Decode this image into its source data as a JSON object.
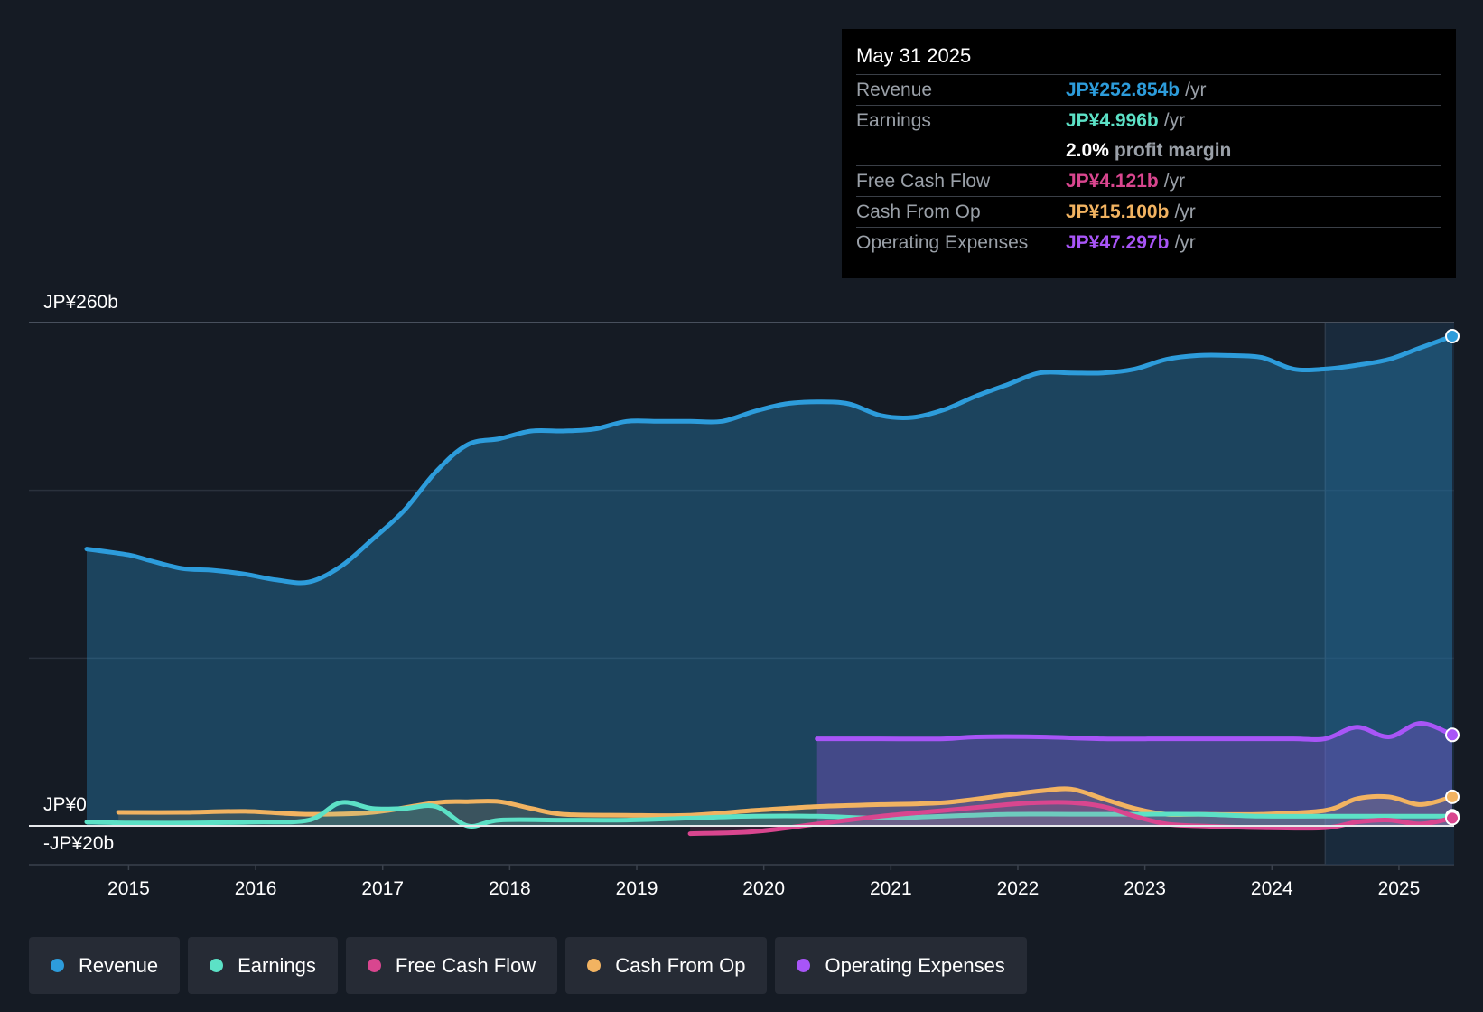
{
  "tooltip": {
    "date": "May 31 2025",
    "rows": [
      {
        "label": "Revenue",
        "value": "JP¥252.854b",
        "unit": "/yr",
        "color": "#2d9cdb"
      },
      {
        "label": "Earnings",
        "value": "JP¥4.996b",
        "unit": "/yr",
        "color": "#5ce1c6"
      },
      {
        "label": "",
        "value": "2.0%",
        "unit": "profit margin"
      },
      {
        "label": "Free Cash Flow",
        "value": "JP¥4.121b",
        "unit": "/yr",
        "color": "#d9468f"
      },
      {
        "label": "Cash From Op",
        "value": "JP¥15.100b",
        "unit": "/yr",
        "color": "#f2b361"
      },
      {
        "label": "Operating Expenses",
        "value": "JP¥47.297b",
        "unit": "/yr",
        "color": "#a855f7"
      }
    ]
  },
  "legend": [
    {
      "label": "Revenue",
      "color": "#2d9cdb"
    },
    {
      "label": "Earnings",
      "color": "#5ce1c6"
    },
    {
      "label": "Free Cash Flow",
      "color": "#d9468f"
    },
    {
      "label": "Cash From Op",
      "color": "#f2b361"
    },
    {
      "label": "Operating Expenses",
      "color": "#a855f7"
    }
  ],
  "chart_data": {
    "type": "line",
    "title": "",
    "y_axis_labels": [
      "JP¥260b",
      "JP¥0",
      "-JP¥20b"
    ],
    "ylim": [
      -20,
      260
    ],
    "xlim": [
      2014.67,
      2025.42
    ],
    "x_ticks": [
      "2015",
      "2016",
      "2017",
      "2018",
      "2019",
      "2020",
      "2021",
      "2022",
      "2023",
      "2024",
      "2025"
    ],
    "forecast_region_start": 2024.42,
    "series": [
      {
        "name": "Revenue",
        "color": "#2d9cdb",
        "area": true,
        "x": [
          2014.67,
          2015.0,
          2015.17,
          2015.42,
          2015.67,
          2015.92,
          2016.17,
          2016.42,
          2016.67,
          2016.92,
          2017.17,
          2017.42,
          2017.67,
          2017.92,
          2018.17,
          2018.42,
          2018.67,
          2018.92,
          2019.17,
          2019.42,
          2019.67,
          2019.92,
          2020.17,
          2020.42,
          2020.67,
          2020.92,
          2021.17,
          2021.42,
          2021.67,
          2021.92,
          2022.17,
          2022.42,
          2022.67,
          2022.92,
          2023.17,
          2023.42,
          2023.67,
          2023.92,
          2024.17,
          2024.42,
          2024.67,
          2024.92,
          2025.17,
          2025.42
        ],
        "values": [
          143,
          140,
          137,
          133,
          132,
          130,
          127,
          126,
          134,
          148,
          163,
          183,
          197,
          200,
          204,
          204,
          205,
          209,
          209,
          209,
          209,
          214,
          218,
          219,
          218,
          212,
          211,
          215,
          222,
          228,
          234,
          234,
          234,
          236,
          241,
          243,
          243,
          242,
          236,
          236,
          238,
          241,
          247,
          253
        ]
      },
      {
        "name": "Earnings",
        "color": "#5ce1c6",
        "area": true,
        "x": [
          2014.67,
          2015.0,
          2015.5,
          2016.0,
          2016.42,
          2016.67,
          2016.92,
          2017.17,
          2017.42,
          2017.67,
          2017.92,
          2018.42,
          2018.92,
          2019.42,
          2019.92,
          2020.42,
          2020.92,
          2021.42,
          2021.92,
          2022.42,
          2022.92,
          2023.42,
          2023.92,
          2024.42,
          2024.92,
          2025.42
        ],
        "values": [
          2,
          1.5,
          1.5,
          2,
          3,
          12,
          9,
          9,
          10,
          0,
          3,
          3,
          3,
          4,
          5,
          5,
          4,
          5,
          6,
          6,
          6,
          6,
          5,
          5,
          5,
          5
        ]
      },
      {
        "name": "Free Cash Flow",
        "color": "#d9468f",
        "area": true,
        "x": [
          2019.42,
          2019.92,
          2020.42,
          2020.92,
          2021.42,
          2021.92,
          2022.17,
          2022.42,
          2022.67,
          2022.92,
          2023.17,
          2023.42,
          2023.92,
          2024.42,
          2024.67,
          2024.92,
          2025.17,
          2025.42
        ],
        "values": [
          -4,
          -3,
          1,
          5,
          8,
          11,
          12,
          12,
          10,
          5,
          1,
          0,
          -1,
          -1,
          2,
          3,
          1,
          4
        ]
      },
      {
        "name": "Cash From Op",
        "color": "#f2b361",
        "area": true,
        "x": [
          2014.92,
          2015.42,
          2015.92,
          2016.42,
          2016.92,
          2017.42,
          2017.67,
          2017.92,
          2018.17,
          2018.42,
          2018.92,
          2019.42,
          2019.92,
          2020.42,
          2020.92,
          2021.42,
          2021.92,
          2022.17,
          2022.42,
          2022.67,
          2022.92,
          2023.17,
          2023.42,
          2023.92,
          2024.42,
          2024.67,
          2024.92,
          2025.17,
          2025.42
        ],
        "values": [
          7,
          7,
          7.5,
          6,
          7,
          12,
          12.5,
          12.5,
          9,
          6,
          5.5,
          5.5,
          8,
          10,
          11,
          12,
          16,
          18,
          19,
          14,
          9,
          6,
          6,
          6,
          8,
          14,
          15,
          11,
          15
        ]
      },
      {
        "name": "Operating Expenses",
        "color": "#a855f7",
        "area": true,
        "x": [
          2020.42,
          2020.92,
          2021.42,
          2021.67,
          2022.17,
          2022.67,
          2023.17,
          2023.67,
          2024.17,
          2024.42,
          2024.67,
          2024.92,
          2025.17,
          2025.42
        ],
        "values": [
          45,
          45,
          45,
          46,
          46,
          45,
          45,
          45,
          45,
          45,
          51,
          46,
          53,
          47
        ]
      }
    ]
  }
}
